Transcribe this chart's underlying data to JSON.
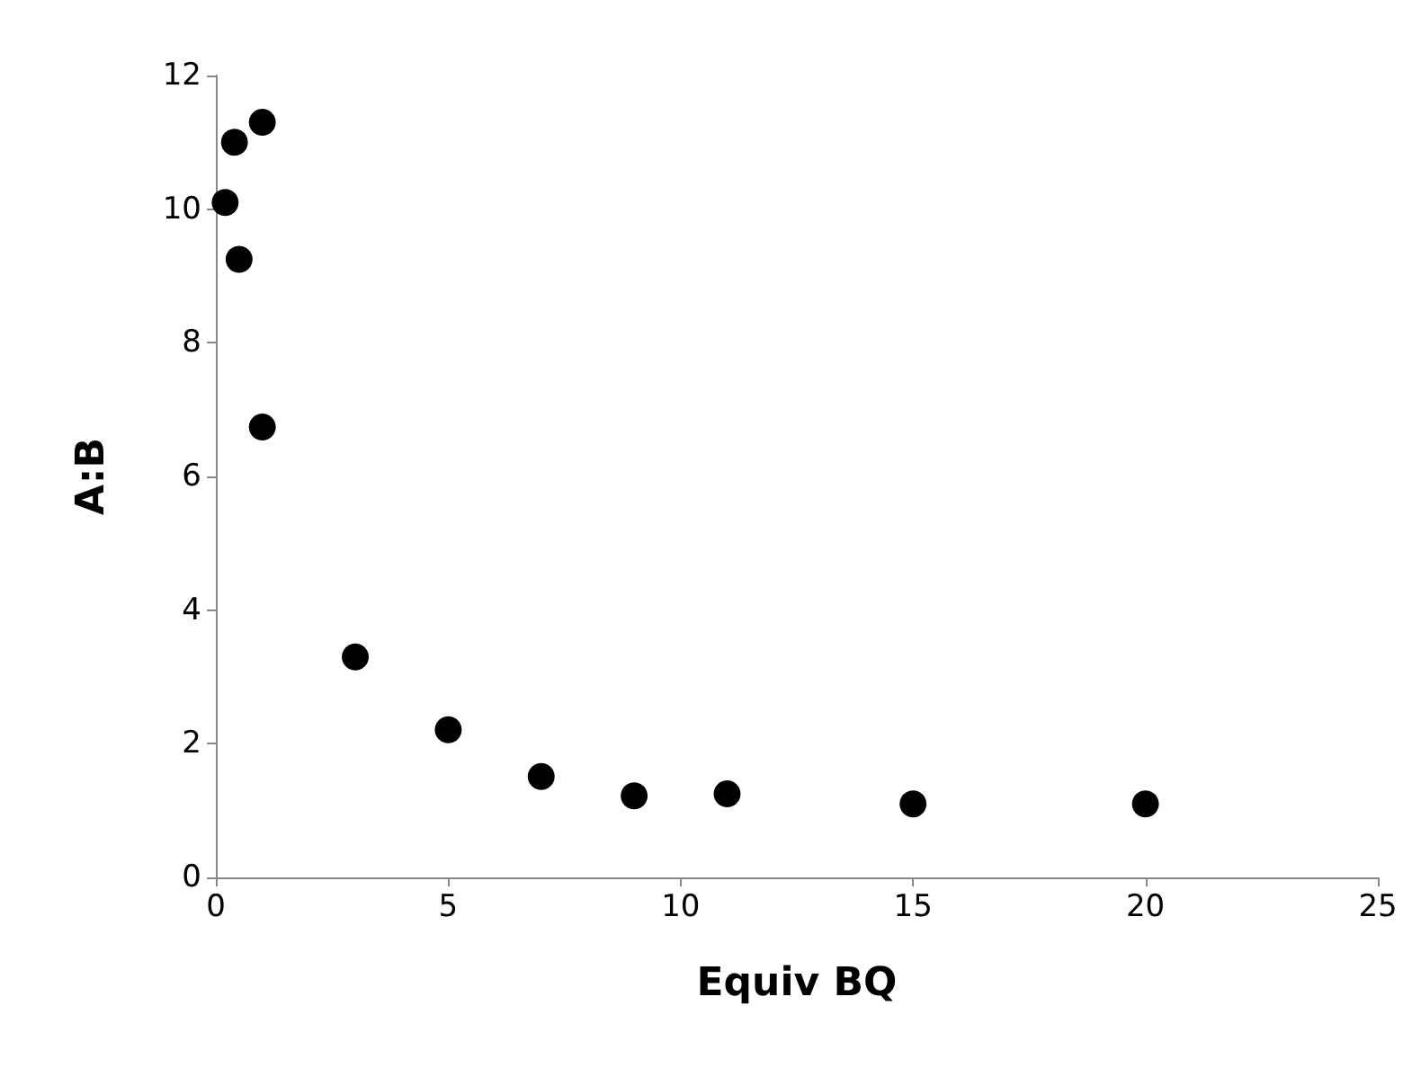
{
  "chart_data": {
    "type": "scatter",
    "xlabel": "Equiv BQ",
    "ylabel": "A:B",
    "x": [
      0.2,
      0.4,
      1,
      0.5,
      1,
      3,
      5,
      7,
      9,
      11,
      15,
      20
    ],
    "values": [
      10.1,
      11.0,
      11.3,
      9.25,
      6.74,
      3.3,
      2.21,
      1.51,
      1.22,
      1.25,
      1.1,
      1.1
    ],
    "color": "#000000",
    "marker": "circle",
    "xlim": [
      0,
      25
    ],
    "xticks": [
      0,
      5,
      10,
      15,
      20,
      25
    ],
    "ylim": [
      0,
      12
    ],
    "yticks": [
      0,
      2,
      4,
      6,
      8,
      10,
      12
    ],
    "grid": false
  }
}
